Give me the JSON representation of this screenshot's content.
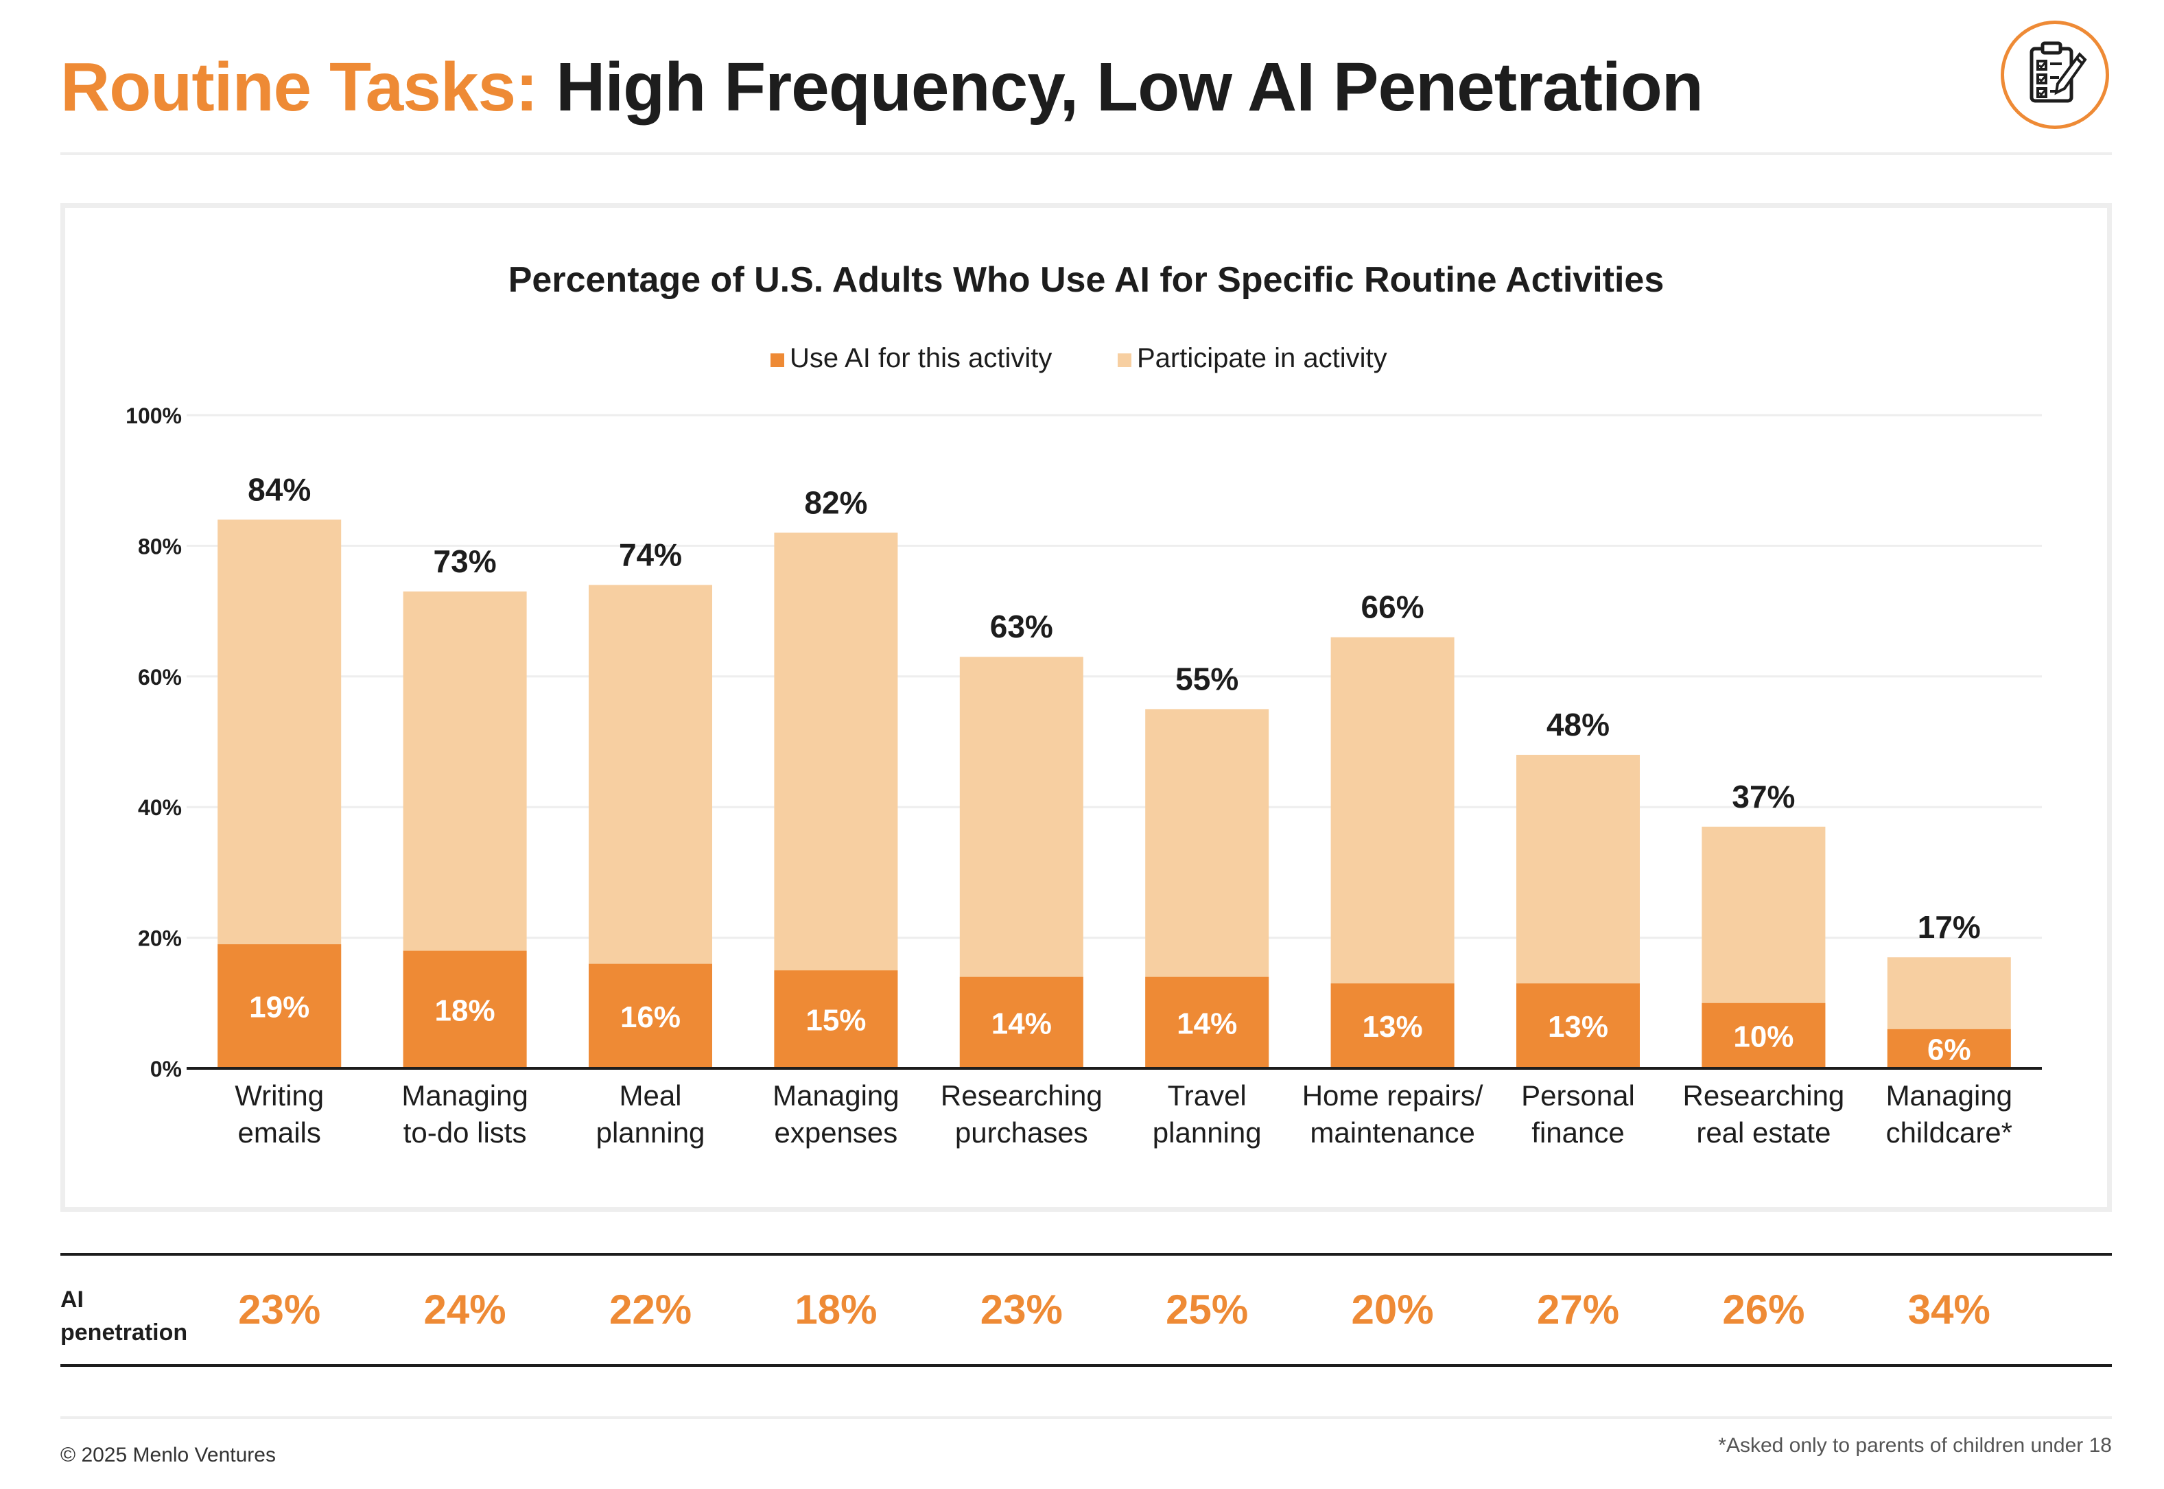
{
  "header": {
    "title_accent": "Routine Tasks:",
    "title_main": "High Frequency, Low AI Penetration",
    "logo_icon": "clipboard-checklist-icon"
  },
  "colors": {
    "accent": "#ee8a35",
    "light": "#f7cfa1",
    "text": "#1d1d1d",
    "grid": "#eeeeee"
  },
  "chart_data": {
    "type": "bar",
    "stacked": "overlay",
    "title": "Percentage of U.S. Adults Who Use AI for Specific Routine Activities",
    "legend_position": "top-center",
    "categories": [
      [
        "Writing",
        "emails"
      ],
      [
        "Managing",
        "to-do lists"
      ],
      [
        "Meal",
        "planning"
      ],
      [
        "Managing",
        "expenses"
      ],
      [
        "Researching",
        "purchases"
      ],
      [
        "Travel",
        "planning"
      ],
      [
        "Home repairs/",
        "maintenance"
      ],
      [
        "Personal",
        "finance"
      ],
      [
        "Researching",
        "real estate"
      ],
      [
        "Managing",
        "childcare*"
      ]
    ],
    "series": [
      {
        "name": "Use AI for this activity",
        "values": [
          19,
          18,
          16,
          15,
          14,
          14,
          13,
          13,
          10,
          6
        ]
      },
      {
        "name": "Participate in activity",
        "values": [
          84,
          73,
          74,
          82,
          63,
          55,
          66,
          48,
          37,
          17
        ]
      }
    ],
    "ylim": [
      0,
      100
    ],
    "yticks": [
      0,
      20,
      40,
      60,
      80,
      100
    ],
    "grid": true,
    "xlabel": "",
    "ylabel": ""
  },
  "penetration": {
    "label_line1": "AI",
    "label_line2": "penetration",
    "values": [
      "23%",
      "24%",
      "22%",
      "18%",
      "23%",
      "25%",
      "20%",
      "27%",
      "26%",
      "34%"
    ]
  },
  "footer": {
    "copyright": "© 2025 Menlo Ventures",
    "footnote": "*Asked only to parents of children under 18"
  }
}
